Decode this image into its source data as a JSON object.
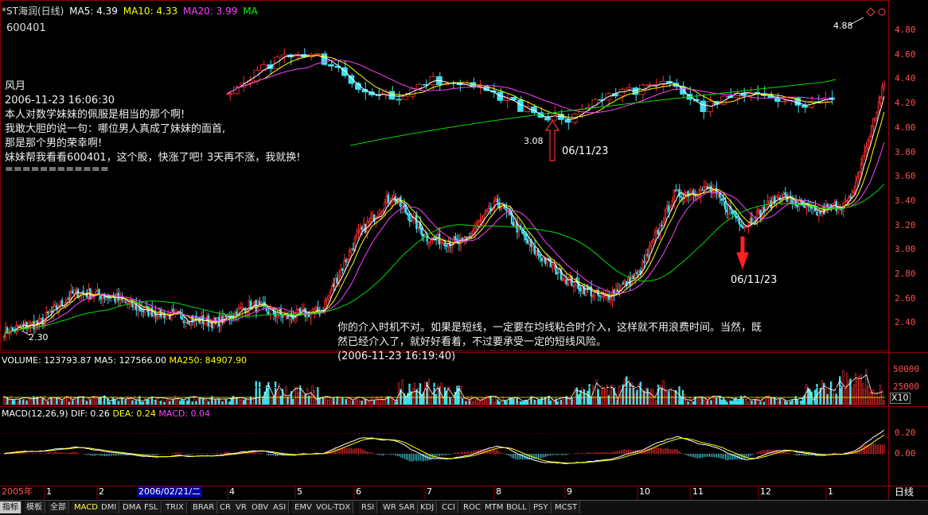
{
  "header": {
    "stock": "*ST海润(日线)",
    "ma": [
      {
        "label": "MA5: 4.39",
        "color": "#ffffff"
      },
      {
        "label": "MA10: 4.33",
        "color": "#ffff00"
      },
      {
        "label": "MA20: 3.99",
        "color": "#ff40ff"
      },
      {
        "label": "MA",
        "color": "#00ff00"
      }
    ],
    "code": "600401"
  },
  "post": {
    "author": "风月",
    "time": "2006-11-23 16:06:30",
    "lines": [
      "本人对数学妹妹的佩服是相当的那个啊!",
      "我敢大胆的说一句：哪位男人真成了妹妹的面首,",
      "那是那个男的荣幸啊!",
      "妹妹帮我看看600401，这个股，快涨了吧! 3天再不涨，我就换!",
      "============"
    ]
  },
  "reply": {
    "lines": [
      "你的介入时机不对。如果是短线，一定要在均线粘合时介入，这样就不用浪费时间。当然，既",
      "然已经介入了，就好好看着，不过要承受一定的短线风险。"
    ],
    "time": "(2006-11-23 16:19:40)"
  },
  "colors": {
    "up": "#ff3030",
    "down": "#40e0f0",
    "ma5": "#ffffff",
    "ma10": "#ffff00",
    "ma20": "#ff40ff",
    "ma60": "#00e000",
    "axis": "#ff3030"
  },
  "volume_header": [
    {
      "label": "VOLUME: 123793.87",
      "color": "#ffffff"
    },
    {
      "label": "MA5: 127566.00",
      "color": "#ffffff"
    },
    {
      "label": "MA250: 84907.90",
      "color": "#ffff00"
    }
  ],
  "macd_header": [
    {
      "label": "MACD(12,26,9)",
      "color": "#ffffff"
    },
    {
      "label": "DIF: 0.26",
      "color": "#ffffff"
    },
    {
      "label": "DEA: 0.24",
      "color": "#ffff00"
    },
    {
      "label": "MACD: 0.04",
      "color": "#ff40ff"
    }
  ],
  "tabs": [
    "指标",
    "模板",
    "全部",
    "MACD",
    "DMI",
    "DMA",
    "FSL",
    "TRIX",
    "BRAR",
    "CR",
    "VR",
    "OBV",
    "ASI",
    "EMV",
    "VOL-TDX",
    "RSI",
    "WR",
    "SAR",
    "KDJ",
    "CCI",
    "ROC",
    "MTM",
    "BOLL",
    "PSY",
    "MCST"
  ],
  "period": "日线",
  "chart_data": [
    {
      "type": "candlestick",
      "title": "*ST海润(日线)",
      "ylim": [
        2.3,
        4.95
      ],
      "yticks": [
        "4.80",
        "4.60",
        "4.40",
        "4.20",
        "4.00",
        "3.80",
        "3.60",
        "3.40",
        "3.20",
        "3.00",
        "2.80",
        "2.60",
        "2.40"
      ],
      "overview": {
        "x": [
          0,
          20,
          40,
          60,
          80,
          100,
          120,
          140,
          160,
          180,
          200,
          220,
          240,
          260,
          280,
          300,
          320,
          340,
          360,
          380,
          400,
          420,
          440,
          460,
          480,
          500
        ],
        "close": [
          2.33,
          2.4,
          2.65,
          2.62,
          2.5,
          2.45,
          2.4,
          2.55,
          2.45,
          2.5,
          3.1,
          3.45,
          3.1,
          3.05,
          3.4,
          3.0,
          2.75,
          2.6,
          2.8,
          3.45,
          3.5,
          3.2,
          3.45,
          3.3,
          3.4,
          4.4
        ]
      },
      "zoom": {
        "x": [
          0,
          10,
          20,
          30,
          40,
          50,
          60,
          70,
          80,
          90,
          100,
          110,
          120,
          130,
          140,
          150,
          160,
          170,
          180
        ],
        "close": [
          4.35,
          4.55,
          4.7,
          4.6,
          4.35,
          4.3,
          4.45,
          4.4,
          4.3,
          4.15,
          4.1,
          4.3,
          4.35,
          4.45,
          4.2,
          4.35,
          4.3,
          4.25,
          4.3
        ]
      },
      "annotations": [
        {
          "text": "2.30",
          "kind": "low"
        },
        {
          "text": "3.08",
          "kind": "low"
        },
        {
          "text": "4.88",
          "kind": "high"
        },
        {
          "text": "06/11/23",
          "kind": "arrow",
          "color": "#ff3030"
        },
        {
          "text": "06/11/23",
          "kind": "arrow",
          "color": "#ff3030"
        }
      ]
    },
    {
      "type": "bar",
      "title": "VOLUME",
      "yticks": [
        "50000",
        "25000"
      ],
      "unit": "X10"
    },
    {
      "type": "bar",
      "title": "MACD(12,26,9)",
      "yticks": [
        "0.20",
        "0.00"
      ]
    }
  ],
  "xaxis": {
    "labels": [
      "2005年",
      "1",
      "2",
      "2006/02/21/二",
      "4",
      "5",
      "6",
      "7",
      "8",
      "9",
      "10",
      "11",
      "12",
      "1"
    ]
  }
}
